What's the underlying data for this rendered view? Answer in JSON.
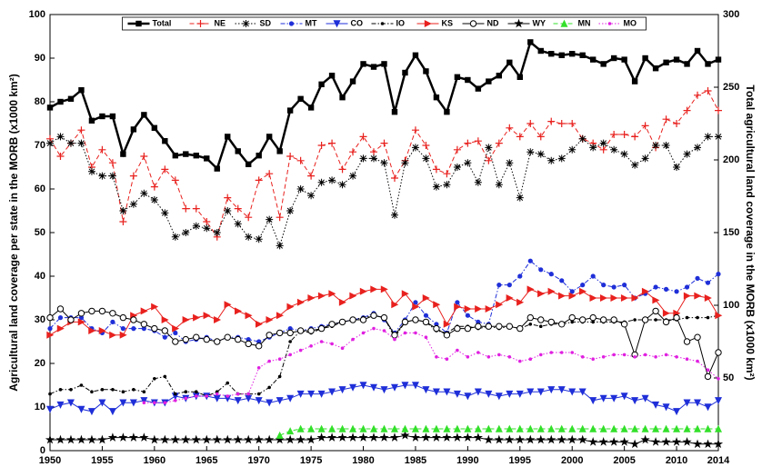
{
  "chart_data": {
    "type": "line",
    "y_label": "Agricultural land coverage per state in the MORB (x1000 km²)",
    "y2_label": "Total agricultural land coverage in the MORB (x1000 km²)",
    "x": [
      1950,
      1951,
      1952,
      1953,
      1954,
      1955,
      1956,
      1957,
      1958,
      1959,
      1960,
      1961,
      1962,
      1963,
      1964,
      1965,
      1966,
      1967,
      1968,
      1969,
      1970,
      1971,
      1972,
      1973,
      1974,
      1975,
      1976,
      1977,
      1978,
      1979,
      1980,
      1981,
      1982,
      1983,
      1984,
      1985,
      1986,
      1987,
      1988,
      1989,
      1990,
      1991,
      1992,
      1993,
      1994,
      1995,
      1996,
      1997,
      1998,
      1999,
      2000,
      2001,
      2002,
      2003,
      2004,
      2005,
      2006,
      2007,
      2008,
      2009,
      2010,
      2011,
      2012,
      2013,
      2014
    ],
    "xlim": [
      1950,
      2014
    ],
    "xticks": [
      1950,
      1955,
      1960,
      1965,
      1970,
      1975,
      1980,
      1985,
      1990,
      1995,
      2000,
      2005,
      2010,
      2014
    ],
    "ylim": [
      0,
      100
    ],
    "yticks": [
      0,
      10,
      20,
      30,
      40,
      50,
      60,
      70,
      80,
      90,
      100
    ],
    "y2lim": [
      0,
      300
    ],
    "y2ticks": [
      50,
      100,
      150,
      200,
      250,
      300
    ],
    "legend": "upper center",
    "series": [
      {
        "name": "Total",
        "color": "#000000",
        "marker": "square",
        "dash": "solid",
        "axis": "y2",
        "values": [
          236,
          240,
          242,
          248,
          227,
          230,
          230,
          204,
          221,
          231,
          222,
          213,
          203,
          204,
          203,
          201,
          194,
          216,
          206,
          197,
          203,
          216,
          206,
          234,
          242,
          236,
          252,
          258,
          243,
          254,
          266,
          264,
          266,
          233,
          260,
          272,
          261,
          243,
          233,
          257,
          255,
          249,
          254,
          258,
          267,
          257,
          281,
          275,
          273,
          272,
          273,
          272,
          269,
          266,
          270,
          269,
          254,
          270,
          263,
          267,
          269,
          266,
          275,
          266,
          269
        ]
      },
      {
        "name": "NE",
        "color": "#e8211e",
        "marker": "plus",
        "dash": "dashed",
        "values": [
          71.5,
          67.5,
          70.5,
          73.5,
          65,
          69,
          66,
          52.5,
          63,
          67.5,
          60.5,
          64.5,
          62,
          55.5,
          55.5,
          52.5,
          49,
          58,
          55.5,
          53.5,
          62,
          63.5,
          53.5,
          67.5,
          66.5,
          63,
          70,
          70.5,
          64.5,
          68.5,
          72,
          68.5,
          70.5,
          62.5,
          66.5,
          73.5,
          70,
          64.5,
          63.5,
          69,
          70.5,
          71,
          66.5,
          70.5,
          74,
          72,
          75,
          72,
          75.5,
          75,
          75,
          71.5,
          70.5,
          69,
          72.5,
          72.5,
          72,
          74.5,
          69.5,
          76,
          75,
          78,
          81.5,
          82.5,
          78
        ]
      },
      {
        "name": "SD",
        "color": "#000000",
        "marker": "asterisk",
        "dash": "dotted",
        "values": [
          70.5,
          72,
          70.5,
          70.5,
          64,
          63,
          63,
          55,
          56.5,
          59,
          57.5,
          54.5,
          49,
          50,
          51.5,
          51,
          50,
          55,
          52,
          49,
          48.5,
          53,
          47,
          55,
          60,
          58.5,
          61.5,
          62,
          61,
          63,
          67,
          67,
          66,
          54,
          66,
          69.5,
          67,
          60.5,
          61,
          65,
          66,
          61.5,
          69.5,
          61,
          66,
          58,
          68.5,
          68,
          66.5,
          67,
          69,
          71.5,
          69.5,
          70.5,
          69,
          68,
          65.5,
          67,
          70,
          70,
          65,
          68,
          69.5,
          72,
          72
        ]
      },
      {
        "name": "MT",
        "color": "#1f2fd8",
        "marker": "dot",
        "dash": "dashdot",
        "values": [
          28,
          30.5,
          30.5,
          30.5,
          28,
          27,
          29.5,
          28,
          28,
          28,
          27.5,
          26,
          27,
          25,
          25.5,
          26,
          25,
          26,
          26,
          25.5,
          25,
          26,
          27,
          28,
          27.5,
          28,
          28.5,
          29,
          29.5,
          30,
          30.5,
          31.5,
          30,
          27,
          30,
          34,
          31,
          29,
          27,
          34,
          31,
          29.5,
          29,
          38,
          38,
          40,
          43.5,
          41.5,
          40.5,
          39,
          36.5,
          38,
          40,
          38,
          37.5,
          38,
          35,
          36,
          37.5,
          37,
          36.5,
          37.5,
          39.5,
          38.5,
          40.5
        ]
      },
      {
        "name": "CO",
        "color": "#1f2fd8",
        "marker": "tri-down",
        "dash": "solid",
        "values": [
          9.5,
          10.5,
          11,
          9.5,
          9,
          11,
          9,
          11,
          11,
          11.5,
          11,
          11,
          12.5,
          12,
          12.5,
          12.5,
          12,
          12,
          11.5,
          12,
          11.5,
          11,
          11.5,
          12,
          13,
          13,
          13,
          13.5,
          14,
          14.5,
          15,
          14.5,
          14,
          14.5,
          15,
          15,
          14,
          13.5,
          13.5,
          13,
          12.5,
          13.5,
          13,
          12.5,
          13,
          13,
          13.5,
          13.5,
          14,
          14,
          13.5,
          13.5,
          11.5,
          12,
          12,
          12.5,
          11.5,
          12,
          10.5,
          10,
          9,
          11,
          11,
          10,
          11.5
        ]
      },
      {
        "name": "IO",
        "color": "#000000",
        "marker": "small-dot",
        "dash": "dashdot",
        "values": [
          13,
          14,
          14,
          15,
          13.5,
          14,
          14,
          13.5,
          14,
          13.5,
          16.5,
          17,
          13,
          13.5,
          13.5,
          12.5,
          13.5,
          15.5,
          13,
          13,
          13,
          14.5,
          17,
          25,
          27.5,
          27,
          28,
          28.5,
          29.5,
          30,
          30.5,
          31,
          30.5,
          26,
          29.5,
          30,
          29.5,
          27.5,
          27,
          28.5,
          28.5,
          28,
          28.5,
          28,
          28.5,
          28,
          29,
          28.5,
          29,
          29,
          29.5,
          29.5,
          29.5,
          29.5,
          29.5,
          29.5,
          30,
          30,
          30,
          30,
          30,
          30.5,
          30.5,
          30.5,
          31
        ]
      },
      {
        "name": "KS",
        "color": "#e8211e",
        "marker": "tri-right",
        "dash": "solid",
        "values": [
          26.5,
          28,
          29.5,
          29.5,
          27.5,
          27.5,
          26.5,
          26.5,
          31,
          32,
          33,
          30,
          28,
          30,
          30.5,
          31,
          30,
          33.5,
          32,
          31,
          29,
          30,
          31,
          33,
          34,
          35,
          35.5,
          36,
          34,
          35.5,
          36.5,
          37,
          37,
          33.5,
          36,
          33,
          35,
          33.5,
          29,
          33,
          32.5,
          32.5,
          32.5,
          33.5,
          35,
          34,
          37,
          36,
          36.5,
          35.5,
          35.5,
          36.5,
          35,
          35,
          35,
          35,
          35,
          36.5,
          34.5,
          31.5,
          31.5,
          35.5,
          35.5,
          35,
          31
        ]
      },
      {
        "name": "ND",
        "color": "#000000",
        "marker": "circle",
        "dash": "solid",
        "values": [
          30.5,
          32.5,
          30,
          31.5,
          32,
          32,
          31.5,
          30.5,
          30,
          29,
          28,
          27.5,
          25,
          25.5,
          26,
          25.5,
          25,
          26,
          25.5,
          24.5,
          24,
          26.5,
          27,
          27,
          27.5,
          27.5,
          28,
          29,
          29.5,
          30,
          30,
          31,
          30.5,
          26.5,
          29.5,
          30,
          29.5,
          28,
          26.5,
          28,
          28,
          28.5,
          28.5,
          28.5,
          28.5,
          28,
          30.5,
          30,
          29.5,
          29,
          30.5,
          30,
          30.5,
          30,
          30,
          29,
          22,
          30,
          32,
          29.5,
          30.5,
          25,
          26,
          17,
          22.5
        ]
      },
      {
        "name": "WY",
        "color": "#000000",
        "marker": "star",
        "dash": "solid",
        "values": [
          2.5,
          2.5,
          2.5,
          2.5,
          2.5,
          2.5,
          3,
          3,
          3,
          3,
          2.5,
          2.5,
          2.5,
          2.5,
          2.5,
          2.5,
          2.5,
          2.5,
          2.5,
          2.5,
          2.5,
          2.5,
          2.5,
          2.5,
          2.5,
          2.5,
          3,
          3,
          3,
          3,
          3,
          3,
          3,
          3,
          3.5,
          3,
          3,
          3,
          3,
          3,
          3,
          3,
          2.5,
          2.5,
          2.5,
          2.5,
          2.5,
          2.5,
          2.5,
          2.5,
          2.5,
          2.5,
          2,
          2,
          2,
          2,
          1.5,
          2.5,
          2,
          2,
          2,
          2,
          1.5,
          1.5,
          1.5
        ]
      },
      {
        "name": "MN",
        "color": "#33e02a",
        "marker": "tri-up",
        "dash": "dashed",
        "values": [
          null,
          null,
          null,
          null,
          null,
          null,
          null,
          null,
          null,
          null,
          null,
          null,
          null,
          null,
          null,
          null,
          null,
          null,
          null,
          null,
          null,
          null,
          3.5,
          4.5,
          5,
          5,
          5,
          5,
          5,
          5,
          5,
          5,
          5,
          5,
          5,
          5,
          5,
          5,
          5,
          5,
          5,
          5,
          5,
          5,
          5,
          5,
          5,
          5,
          5,
          5,
          5,
          5,
          5,
          5,
          5,
          5,
          5,
          5,
          5,
          5,
          5,
          5,
          5,
          5,
          5
        ]
      },
      {
        "name": "MO",
        "color": "#e020e0",
        "marker": "small-dot",
        "dash": "dotted",
        "values": [
          null,
          null,
          null,
          null,
          null,
          null,
          null,
          null,
          null,
          11,
          11,
          11,
          11.5,
          12,
          12.5,
          12.5,
          13,
          12.5,
          13,
          13,
          19,
          20.5,
          21,
          22,
          23,
          24,
          25,
          24.5,
          23.5,
          25.5,
          27,
          28,
          27.5,
          25.5,
          27,
          27,
          26,
          21.5,
          21,
          23,
          21.5,
          22.5,
          21.5,
          22,
          21.5,
          20.5,
          21,
          22,
          22.5,
          22.5,
          22.5,
          21.5,
          21,
          21.5,
          22,
          22,
          21.5,
          22,
          21.5,
          22,
          21.5,
          21,
          20.5,
          18.5,
          16.5
        ]
      }
    ]
  }
}
